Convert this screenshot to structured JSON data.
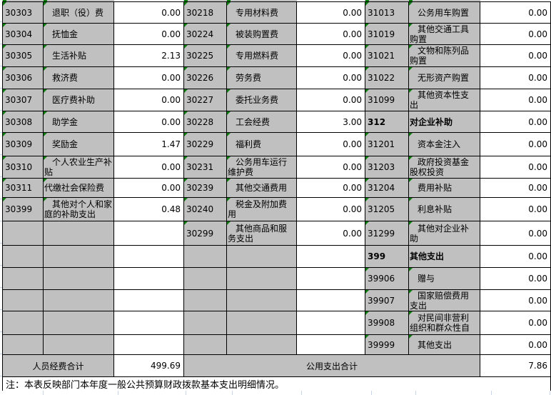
{
  "table": {
    "rows": [
      [
        {
          "code": "30303",
          "name": "退职（役）费",
          "amount": "0.00"
        },
        {
          "code": "30218",
          "name": "专用材料费",
          "amount": "0.00"
        },
        {
          "code": "31013",
          "name": "公务用车购置",
          "amount": "0.00"
        }
      ],
      [
        {
          "code": "30304",
          "name": "抚恤金",
          "amount": "0.00"
        },
        {
          "code": "30224",
          "name": "被装购置费",
          "amount": "0.00"
        },
        {
          "code": "31019",
          "name": "其他交通工具\n购置",
          "amount": "0.00"
        }
      ],
      [
        {
          "code": "30305",
          "name": "生活补贴",
          "amount": "2.13"
        },
        {
          "code": "30225",
          "name": "专用燃料费",
          "amount": "0.00"
        },
        {
          "code": "31021",
          "name": "文物和陈列品\n购置",
          "amount": "0.00"
        }
      ],
      [
        {
          "code": "30306",
          "name": "救济费",
          "amount": "0.00"
        },
        {
          "code": "30226",
          "name": "劳务费",
          "amount": "0.00"
        },
        {
          "code": "31022",
          "name": "无形资产购置",
          "amount": "0.00"
        }
      ],
      [
        {
          "code": "30307",
          "name": "医疗费补助",
          "amount": "0.00"
        },
        {
          "code": "30227",
          "name": "委托业务费",
          "amount": "0.00"
        },
        {
          "code": "31099",
          "name": "其他资本性支\n出",
          "amount": "0.00"
        }
      ],
      [
        {
          "code": "30308",
          "name": "助学金",
          "amount": "0.00"
        },
        {
          "code": "30228",
          "name": "工会经费",
          "amount": "3.00"
        },
        {
          "code": "312",
          "name": "对企业补助",
          "amount": "0.00",
          "bold": true
        }
      ],
      [
        {
          "code": "30309",
          "name": "奖励金",
          "amount": "1.47"
        },
        {
          "code": "30229",
          "name": "福利费",
          "amount": "0.00"
        },
        {
          "code": "31201",
          "name": "资本金注入",
          "amount": "0.00"
        }
      ],
      [
        {
          "code": "30310",
          "name": "个人农业生产补\n贴",
          "amount": "0.00"
        },
        {
          "code": "30231",
          "name": "公务用车运行\n维护费",
          "amount": "0.00"
        },
        {
          "code": "31203",
          "name": "政府投资基金\n股权投资",
          "amount": "0.00"
        }
      ],
      [
        {
          "code": "30311",
          "name": "代缴社会保险费",
          "amount": "0.00",
          "indent": false
        },
        {
          "code": "30239",
          "name": "其他交通费用",
          "amount": "0.00"
        },
        {
          "code": "31204",
          "name": "费用补贴",
          "amount": "0.00"
        }
      ],
      [
        {
          "code": "30399",
          "name": "其他对个人和家\n庭的补助支出",
          "amount": "0.48"
        },
        {
          "code": "30240",
          "name": "税金及附加费\n用",
          "amount": "0.00"
        },
        {
          "code": "31205",
          "name": "利息补贴",
          "amount": "0.00"
        }
      ],
      [
        {
          "code": "",
          "name": "",
          "amount": ""
        },
        {
          "code": "30299",
          "name": "其他商品和服\n务支出",
          "amount": "0.00"
        },
        {
          "code": "31299",
          "name": "其他对企业补\n助",
          "amount": "0.00"
        }
      ],
      [
        {
          "code": "",
          "name": "",
          "amount": ""
        },
        {
          "code": "",
          "name": "",
          "amount": ""
        },
        {
          "code": "399",
          "name": "其他支出",
          "amount": "0.00",
          "bold": true
        }
      ],
      [
        {
          "code": "",
          "name": "",
          "amount": ""
        },
        {
          "code": "",
          "name": "",
          "amount": ""
        },
        {
          "code": "39906",
          "name": "赠与",
          "amount": "0.00"
        }
      ],
      [
        {
          "code": "",
          "name": "",
          "amount": ""
        },
        {
          "code": "",
          "name": "",
          "amount": ""
        },
        {
          "code": "39907",
          "name": "国家赔偿费用\n支出",
          "amount": "0.00"
        }
      ],
      [
        {
          "code": "",
          "name": "",
          "amount": ""
        },
        {
          "code": "",
          "name": "",
          "amount": ""
        },
        {
          "code": "39908",
          "name": "对民间非营利\n组织和群众性自",
          "amount": "0.00"
        }
      ],
      [
        {
          "code": "",
          "name": "",
          "amount": ""
        },
        {
          "code": "",
          "name": "",
          "amount": ""
        },
        {
          "code": "39999",
          "name": "其他支出",
          "amount": "0.00"
        }
      ]
    ],
    "footer": {
      "personnel_label": "人员经费合计",
      "personnel_total": "499.69",
      "public_label": "公用支出合计",
      "public_total": "7.86"
    },
    "note": "注：本表反映部门本年度一般公共预算财政拨款基本支出明细情况。"
  },
  "colors": {
    "cell_gray": "#c0c0c0",
    "border_black": "#000000",
    "flag_green": "#0a7d0a",
    "gridline_blue": "#c9d5e8"
  }
}
